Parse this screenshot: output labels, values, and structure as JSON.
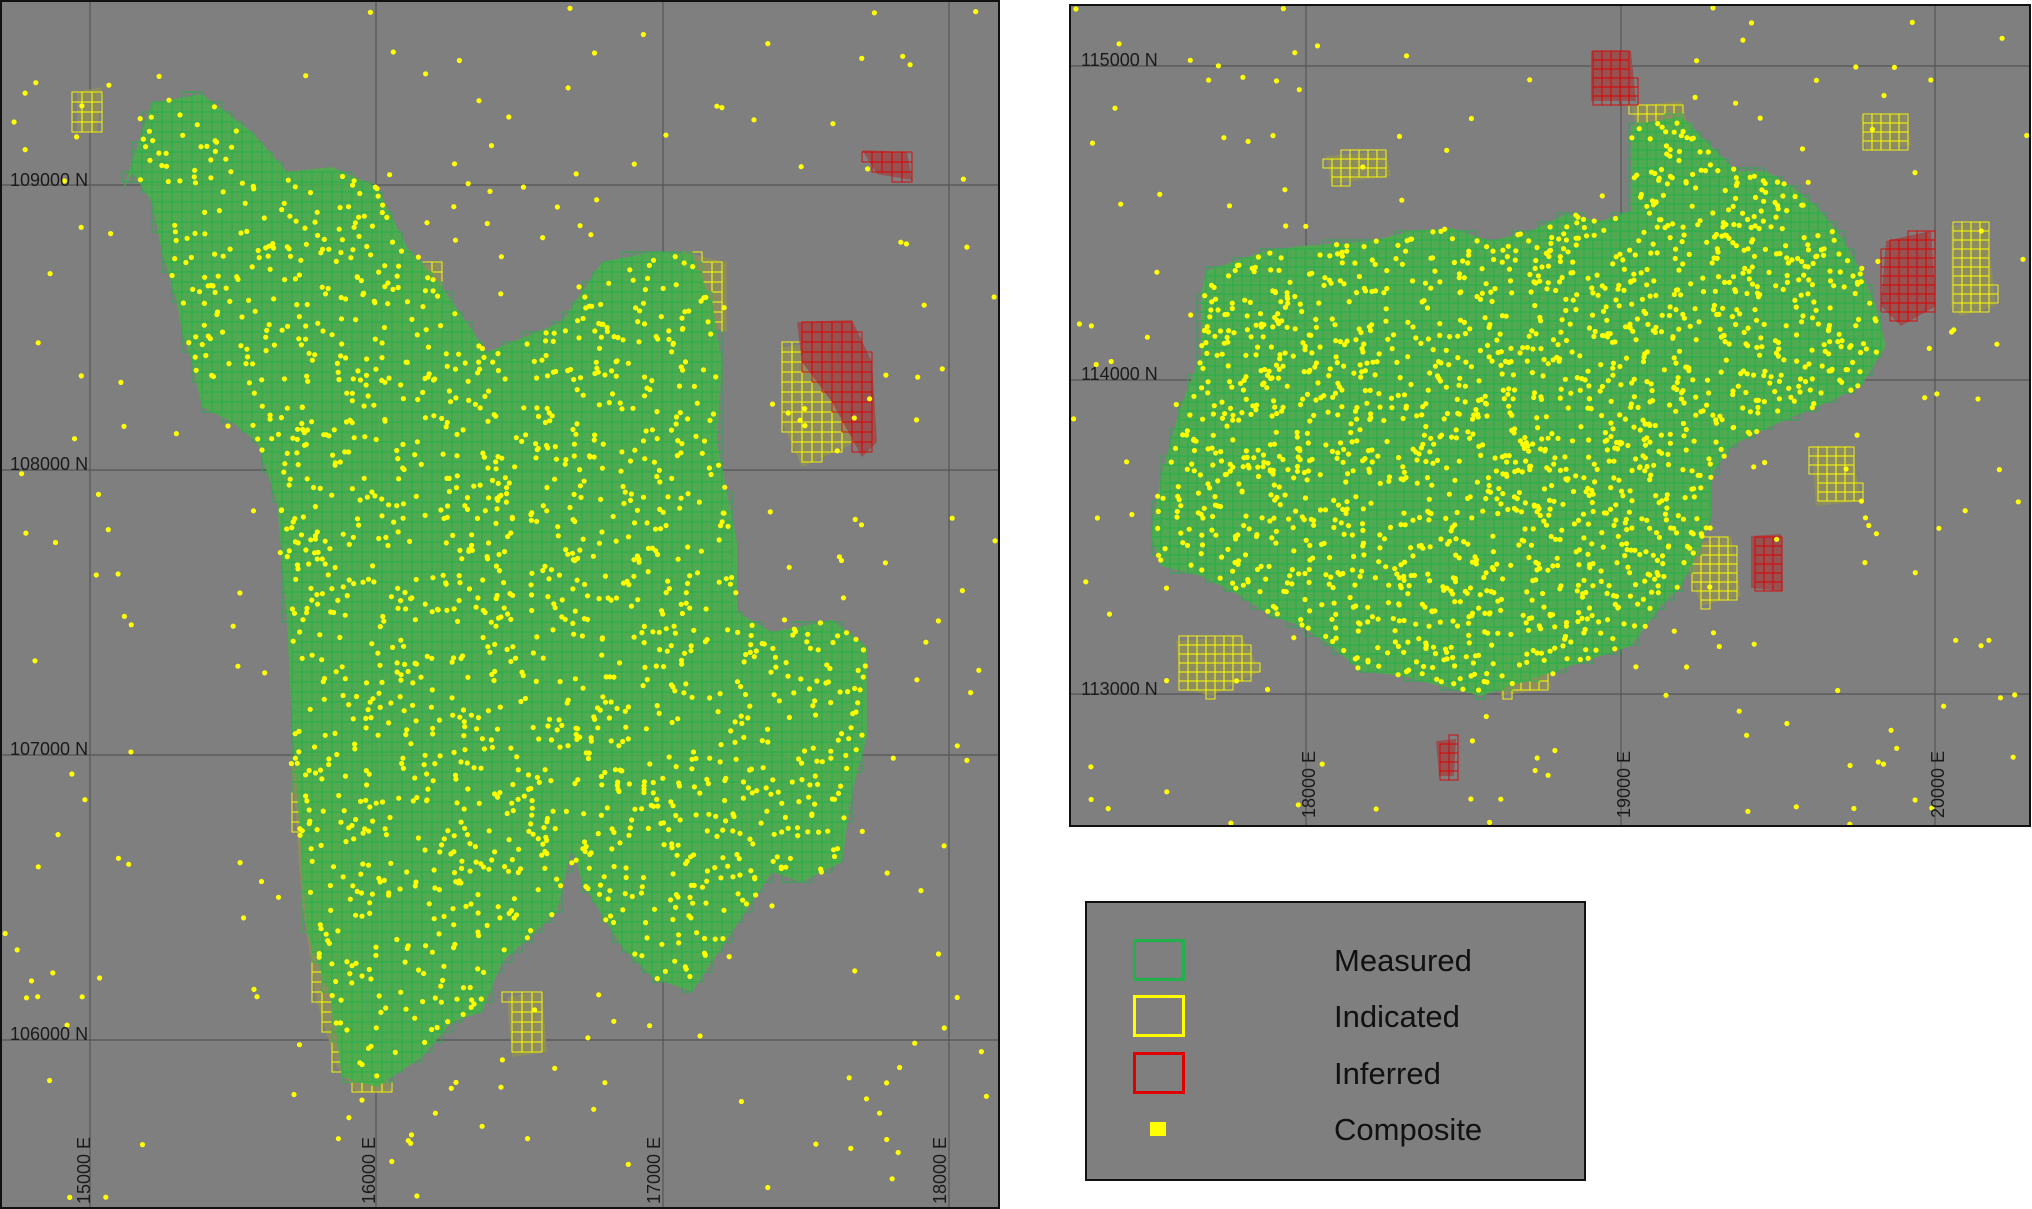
{
  "left_map": {
    "northing_labels": [
      "109000 N",
      "108000 N",
      "107000 N",
      "106000 N"
    ],
    "easting_labels": [
      "15000 E",
      "16000 E",
      "17000 E",
      "18000 E"
    ]
  },
  "right_map": {
    "northing_labels": [
      "115000 N",
      "114000 N",
      "113000 N"
    ],
    "easting_labels": [
      "18000 E",
      "19000 E",
      "20000 E"
    ]
  },
  "legend": {
    "items": [
      {
        "label": "Measured",
        "color": "#22b14c",
        "symbol": "square-outline"
      },
      {
        "label": "Indicated",
        "color": "#ffff00",
        "symbol": "square-outline"
      },
      {
        "label": "Inferred",
        "color": "#e00000",
        "symbol": "square-outline"
      },
      {
        "label": "Composite",
        "color": "#ffff00",
        "symbol": "filled-square"
      }
    ]
  },
  "colors": {
    "background": "#7f7f7f",
    "grid": "#555555",
    "measured": "#22b14c",
    "indicated": "#ffff00",
    "inferred": "#e00000",
    "composite": "#ffff00"
  }
}
